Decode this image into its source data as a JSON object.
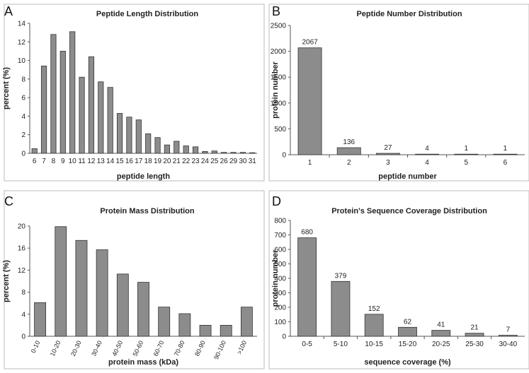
{
  "chart_data": [
    {
      "panel": "A",
      "type": "bar",
      "title": "Peptide Length Distribution",
      "xlabel": "peptide length",
      "ylabel": "percent  (%)",
      "ylim": [
        0,
        14
      ],
      "yticks": [
        0,
        2,
        4,
        6,
        8,
        10,
        12,
        14
      ],
      "categories": [
        "6",
        "7",
        "8",
        "9",
        "10",
        "11",
        "12",
        "13",
        "14",
        "15",
        "16",
        "17",
        "18",
        "19",
        "20",
        "21",
        "22",
        "23",
        "24",
        "25",
        "26",
        "29",
        "30",
        "31"
      ],
      "values": [
        0.5,
        9.4,
        12.8,
        11.0,
        13.1,
        8.2,
        10.4,
        7.7,
        7.1,
        4.3,
        3.9,
        3.6,
        2.1,
        1.7,
        0.9,
        1.3,
        0.8,
        0.7,
        0.2,
        0.25,
        0.1,
        0.1,
        0.1,
        0.05
      ]
    },
    {
      "panel": "B",
      "type": "bar",
      "title": "Peptide Number Distribution",
      "xlabel": "peptide number",
      "ylabel": "protein number",
      "ylim": [
        0,
        2500
      ],
      "yticks": [
        0,
        500,
        1000,
        1500,
        2000,
        2500
      ],
      "categories": [
        "1",
        "2",
        "3",
        "4",
        "5",
        "6"
      ],
      "values": [
        2067,
        136,
        27,
        4,
        1,
        1
      ],
      "data_labels": [
        "2067",
        "136",
        "27",
        "4",
        "1",
        "1"
      ]
    },
    {
      "panel": "C",
      "type": "bar",
      "title": "Protein Mass Distribution",
      "xlabel": "protein mass  (kDa)",
      "ylabel": "percent   (%)",
      "ylim": [
        0,
        20
      ],
      "yticks": [
        0,
        4,
        8,
        12,
        16,
        20
      ],
      "categories": [
        "0-10",
        "10-20",
        "20-30",
        "30-40",
        "40-50",
        "50-60",
        "60-70",
        "70-80",
        "80-90",
        "90-100",
        ">100"
      ],
      "values": [
        6.1,
        19.9,
        17.4,
        15.7,
        11.3,
        9.8,
        5.3,
        4.1,
        2.0,
        2.0,
        5.3
      ]
    },
    {
      "panel": "D",
      "type": "bar",
      "title": "Protein's Sequence Coverage Distribution",
      "xlabel": "sequence coverage  (%)",
      "ylabel": "protein number",
      "ylim": [
        0,
        800
      ],
      "yticks": [
        0,
        100,
        200,
        300,
        400,
        500,
        600,
        700,
        800
      ],
      "categories": [
        "0-5",
        "5-10",
        "10-15",
        "15-20",
        "20-25",
        "25-30",
        "30-40"
      ],
      "values": [
        680,
        379,
        152,
        62,
        41,
        21,
        7
      ],
      "data_labels": [
        "680",
        "379",
        "152",
        "62",
        "41",
        "21",
        "7"
      ]
    }
  ]
}
